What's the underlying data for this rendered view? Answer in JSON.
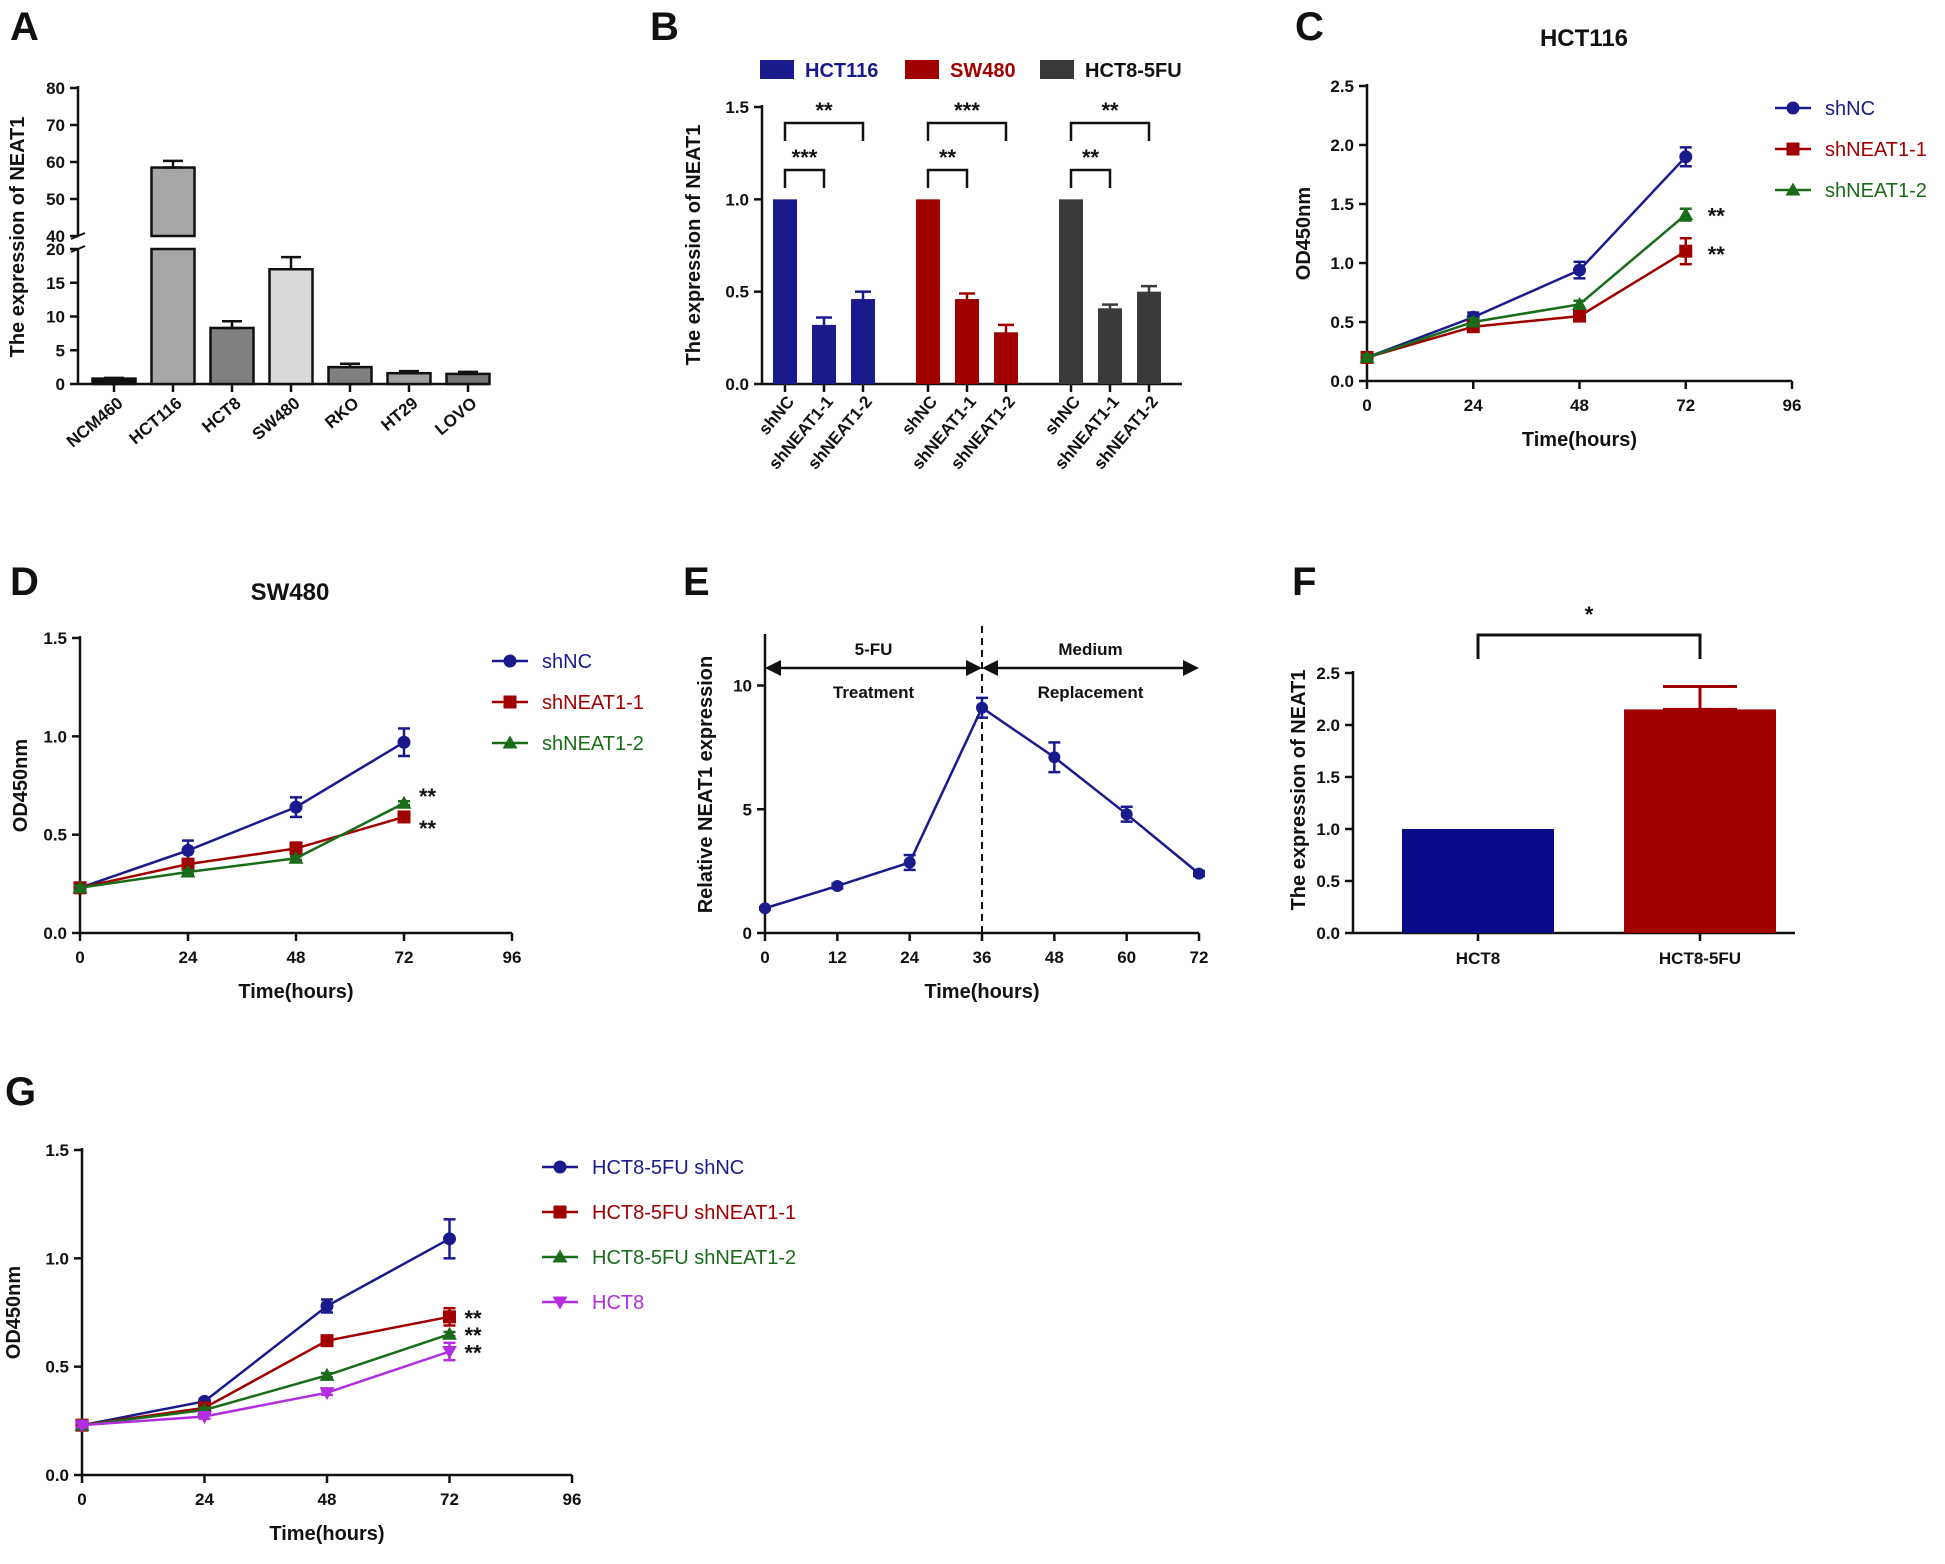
{
  "colors": {
    "navy": "#1a1a8c",
    "red": "#a00000",
    "green": "#1a6b1a",
    "magenta": "#b02ee0",
    "darkgray": "#3a3a3a"
  },
  "chart_data": [
    {
      "id": "A",
      "panel_label": "A",
      "type": "bar",
      "title": "",
      "ylabel": "The expression of NEAT1",
      "xlabel": "",
      "broken_axis": true,
      "lower_ylim": [
        0,
        20
      ],
      "upper_ylim": [
        40,
        80
      ],
      "lower_yticks": [
        0,
        5,
        10,
        15,
        20
      ],
      "upper_yticks": [
        40,
        50,
        60,
        70,
        80
      ],
      "categories": [
        "NCM460",
        "HCT116",
        "HCT8",
        "SW480",
        "RKO",
        "HT29",
        "LOVO"
      ],
      "values": [
        0.8,
        58.5,
        8.3,
        17.0,
        2.5,
        1.6,
        1.5
      ],
      "errors": [
        0.1,
        1.8,
        1.0,
        1.8,
        0.5,
        0.3,
        0.3
      ],
      "bar_colors": [
        "#111111",
        "#a7a7a7",
        "#808080",
        "#d9d9d9",
        "#808080",
        "#a0a0a0",
        "#777777"
      ]
    },
    {
      "id": "B",
      "panel_label": "B",
      "type": "bar",
      "ylabel": "The expression of NEAT1",
      "ylim": [
        0,
        1.5
      ],
      "yticks": [
        "0.0",
        "0.5",
        "1.0",
        "1.5"
      ],
      "categories": [
        "shNC",
        "shNEAT1-1",
        "shNEAT1-2"
      ],
      "series": [
        {
          "name": "HCT116",
          "color": "#1a1a8c",
          "values": [
            1.0,
            0.32,
            0.46
          ],
          "errors": [
            0,
            0.04,
            0.04
          ]
        },
        {
          "name": "SW480",
          "color": "#a00000",
          "values": [
            1.0,
            0.46,
            0.28
          ],
          "errors": [
            0,
            0.03,
            0.04
          ]
        },
        {
          "name": "HCT8-5FU",
          "color": "#3a3a3a",
          "values": [
            1.0,
            0.41,
            0.5
          ],
          "errors": [
            0,
            0.02,
            0.03
          ]
        }
      ],
      "significance": [
        {
          "group": 0,
          "inner": "***",
          "outer": "**"
        },
        {
          "group": 1,
          "inner": "**",
          "outer": "***"
        },
        {
          "group": 2,
          "inner": "**",
          "outer": "**"
        }
      ]
    },
    {
      "id": "C",
      "panel_label": "C",
      "type": "line",
      "title": "HCT116",
      "xlabel": "Time(hours)",
      "ylabel": "OD450nm",
      "xlim": [
        0,
        96
      ],
      "xticks": [
        0,
        24,
        48,
        72,
        96
      ],
      "ylim": [
        0,
        2.5
      ],
      "yticks": [
        "0.0",
        "0.5",
        "1.0",
        "1.5",
        "2.0",
        "2.5"
      ],
      "x": [
        0,
        24,
        48,
        72
      ],
      "series": [
        {
          "name": "shNC",
          "color": "#1a1a8c",
          "marker": "circle",
          "values": [
            0.2,
            0.54,
            0.94,
            1.9
          ],
          "errors": [
            0.02,
            0.04,
            0.07,
            0.08
          ],
          "sig": ""
        },
        {
          "name": "shNEAT1-1",
          "color": "#a00000",
          "marker": "square",
          "values": [
            0.2,
            0.46,
            0.55,
            1.1
          ],
          "errors": [
            0.02,
            0.03,
            0.03,
            0.11
          ],
          "sig": "**"
        },
        {
          "name": "shNEAT1-2",
          "color": "#1a6b1a",
          "marker": "triangle",
          "values": [
            0.2,
            0.5,
            0.65,
            1.41
          ],
          "errors": [
            0.02,
            0.03,
            0.03,
            0.05
          ],
          "sig": "**"
        }
      ]
    },
    {
      "id": "D",
      "panel_label": "D",
      "type": "line",
      "title": "SW480",
      "xlabel": "Time(hours)",
      "ylabel": "OD450nm",
      "xlim": [
        0,
        96
      ],
      "xticks": [
        0,
        24,
        48,
        72,
        96
      ],
      "ylim": [
        0,
        1.5
      ],
      "yticks": [
        "0.0",
        "0.5",
        "1.0",
        "1.5"
      ],
      "x": [
        0,
        24,
        48,
        72
      ],
      "series": [
        {
          "name": "shNC",
          "color": "#1a1a8c",
          "marker": "circle",
          "values": [
            0.23,
            0.42,
            0.64,
            0.97
          ],
          "errors": [
            0.01,
            0.05,
            0.05,
            0.07
          ],
          "sig": ""
        },
        {
          "name": "shNEAT1-1",
          "color": "#a00000",
          "marker": "square",
          "values": [
            0.23,
            0.35,
            0.43,
            0.59
          ],
          "errors": [
            0.01,
            0.02,
            0.03,
            0.02
          ],
          "sig": "**"
        },
        {
          "name": "shNEAT1-2",
          "color": "#1a6b1a",
          "marker": "triangle",
          "values": [
            0.23,
            0.31,
            0.38,
            0.66
          ],
          "errors": [
            0.01,
            0.01,
            0.01,
            0.01
          ],
          "sig": "**"
        }
      ]
    },
    {
      "id": "E",
      "panel_label": "E",
      "type": "line",
      "title": "",
      "xlabel": "Time(hours)",
      "ylabel": "Relative NEAT1 expression",
      "xlim": [
        0,
        72
      ],
      "xticks": [
        0,
        12,
        24,
        36,
        48,
        60,
        72
      ],
      "ylim": [
        0,
        12
      ],
      "yticks": [
        "0",
        "5",
        "10"
      ],
      "ytick_values": [
        0,
        5,
        10
      ],
      "x": [
        0,
        12,
        24,
        36,
        48,
        60,
        72
      ],
      "series": [
        {
          "name": "NEAT1",
          "color": "#1a1a8c",
          "marker": "circle",
          "values": [
            1.0,
            1.9,
            2.85,
            9.1,
            7.1,
            4.8,
            2.4
          ],
          "errors": [
            0.05,
            0.1,
            0.3,
            0.4,
            0.6,
            0.3,
            0.1
          ],
          "sig": ""
        }
      ],
      "phase_line_x": 36,
      "phase1_top": "5-FU",
      "phase1_bottom": "Treatment",
      "phase2_top": "Medium",
      "phase2_bottom": "Replacement"
    },
    {
      "id": "F",
      "panel_label": "F",
      "type": "bar",
      "ylabel": "The expression of NEAT1",
      "ylim": [
        0,
        2.5
      ],
      "yticks": [
        "0.0",
        "0.5",
        "1.0",
        "1.5",
        "2.0",
        "2.5"
      ],
      "categories": [
        "HCT8",
        "HCT8-5FU"
      ],
      "values": [
        1.0,
        2.15
      ],
      "errors": [
        0,
        0.22
      ],
      "bar_colors": [
        "#0a0a8a",
        "#a00000"
      ],
      "significance": "*"
    },
    {
      "id": "G",
      "panel_label": "G",
      "type": "line",
      "title": "",
      "xlabel": "Time(hours)",
      "ylabel": "OD450nm",
      "xlim": [
        0,
        96
      ],
      "xticks": [
        0,
        24,
        48,
        72,
        96
      ],
      "ylim": [
        0,
        1.5
      ],
      "yticks": [
        "0.0",
        "0.5",
        "1.0",
        "1.5"
      ],
      "x": [
        0,
        24,
        48,
        72
      ],
      "series": [
        {
          "name": "HCT8-5FU shNC",
          "color": "#1a1a8c",
          "marker": "circle",
          "values": [
            0.23,
            0.34,
            0.78,
            1.09
          ],
          "errors": [
            0.01,
            0.01,
            0.03,
            0.09
          ],
          "sig": ""
        },
        {
          "name": "HCT8-5FU shNEAT1-1",
          "color": "#a00000",
          "marker": "square",
          "values": [
            0.23,
            0.31,
            0.62,
            0.73
          ],
          "errors": [
            0.01,
            0.01,
            0.02,
            0.04
          ],
          "sig": "**"
        },
        {
          "name": "HCT8-5FU shNEAT1-2",
          "color": "#1a6b1a",
          "marker": "triangle",
          "values": [
            0.23,
            0.3,
            0.46,
            0.65
          ],
          "errors": [
            0.01,
            0.01,
            0.01,
            0.01
          ],
          "sig": "**"
        },
        {
          "name": "HCT8",
          "color": "#b02ee0",
          "marker": "triangle-down",
          "values": [
            0.23,
            0.27,
            0.38,
            0.57
          ],
          "errors": [
            0.01,
            0.01,
            0.01,
            0.04
          ],
          "sig": "**"
        }
      ]
    }
  ]
}
